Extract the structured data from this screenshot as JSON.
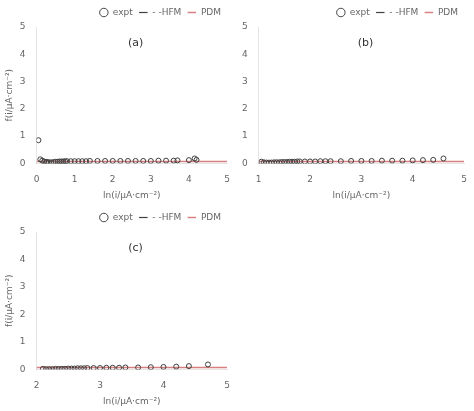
{
  "chart_data": [
    {
      "type": "scatter",
      "annotations": [
        "(a)"
      ],
      "xlabel": "ln(i/μA·cm⁻²)",
      "ylabel": "f(i/μA·cm⁻²)",
      "xlim": [
        0,
        5
      ],
      "ylim": [
        0,
        5
      ],
      "xticks": [
        0,
        1,
        2,
        3,
        4,
        5
      ],
      "yticks": [
        0,
        1,
        2,
        3,
        4,
        5
      ],
      "grid": false,
      "legend": "upper right",
      "series": [
        {
          "name": "expt",
          "type": "scatter",
          "color": "#404040",
          "marker": "circle",
          "x": [
            0.05,
            0.1,
            0.15,
            0.2,
            0.25,
            0.28,
            0.32,
            0.38,
            0.45,
            0.5,
            0.55,
            0.6,
            0.65,
            0.7,
            0.75,
            0.8,
            0.9,
            1.0,
            1.1,
            1.2,
            1.3,
            1.4,
            1.6,
            1.8,
            2.0,
            2.2,
            2.4,
            2.6,
            2.8,
            3.0,
            3.2,
            3.4,
            3.6,
            3.7,
            4.0,
            4.2,
            4.15
          ],
          "values": [
            0.85,
            0.15,
            0.1,
            0.07,
            0.05,
            0.05,
            0.04,
            0.04,
            0.05,
            0.06,
            0.06,
            0.07,
            0.07,
            0.07,
            0.08,
            0.08,
            0.08,
            0.08,
            0.08,
            0.08,
            0.08,
            0.09,
            0.09,
            0.09,
            0.09,
            0.09,
            0.09,
            0.09,
            0.09,
            0.09,
            0.1,
            0.1,
            0.1,
            0.11,
            0.12,
            0.13,
            0.18
          ]
        },
        {
          "name": "- -HFM",
          "type": "line",
          "color": "#404040",
          "line_style": "dashed",
          "x": [],
          "values": []
        },
        {
          "name": "PDM",
          "type": "hline",
          "color": "#d88080",
          "line_style": "solid",
          "values": [
            0.07
          ]
        }
      ]
    },
    {
      "type": "scatter",
      "annotations": [
        "(b)"
      ],
      "xlabel": "ln(i/μA·cm⁻²)",
      "xlim": [
        1,
        5
      ],
      "ylim": [
        0,
        5
      ],
      "xticks": [
        1,
        2,
        3,
        4,
        5
      ],
      "yticks": [
        0,
        1,
        2,
        3,
        4,
        5
      ],
      "grid": false,
      "legend": "upper right",
      "series": [
        {
          "name": "expt",
          "type": "scatter",
          "color": "#404040",
          "marker": "circle",
          "x": [
            1.05,
            1.1,
            1.15,
            1.2,
            1.25,
            1.3,
            1.35,
            1.4,
            1.45,
            1.5,
            1.55,
            1.6,
            1.65,
            1.7,
            1.75,
            1.8,
            1.9,
            2.0,
            2.1,
            2.2,
            2.3,
            2.4,
            2.6,
            2.8,
            3.0,
            3.2,
            3.4,
            3.6,
            3.8,
            4.0,
            4.2,
            4.4,
            4.6
          ],
          "values": [
            0.06,
            0.04,
            0.03,
            0.03,
            0.03,
            0.04,
            0.04,
            0.04,
            0.05,
            0.05,
            0.05,
            0.06,
            0.06,
            0.06,
            0.07,
            0.07,
            0.07,
            0.07,
            0.07,
            0.08,
            0.08,
            0.08,
            0.08,
            0.09,
            0.09,
            0.09,
            0.1,
            0.1,
            0.1,
            0.11,
            0.12,
            0.13,
            0.18
          ]
        },
        {
          "name": "- -HFM",
          "type": "line",
          "color": "#404040",
          "line_style": "dashed",
          "x": [],
          "values": []
        },
        {
          "name": "PDM",
          "type": "hline",
          "color": "#d88080",
          "line_style": "solid",
          "values": [
            0.07
          ]
        }
      ]
    },
    {
      "type": "scatter",
      "annotations": [
        "(c)"
      ],
      "xlabel": "ln(i/μA·cm⁻²)",
      "ylabel": "f(i/μA·cm⁻²)",
      "xlim": [
        2,
        5
      ],
      "ylim": [
        0,
        5
      ],
      "xticks": [
        2,
        3,
        4,
        5
      ],
      "yticks": [
        0,
        1,
        2,
        3,
        4,
        5
      ],
      "grid": false,
      "legend": "upper right",
      "series": [
        {
          "name": "expt",
          "type": "scatter",
          "color": "#404040",
          "marker": "circle",
          "x": [
            2.1,
            2.15,
            2.2,
            2.25,
            2.3,
            2.35,
            2.4,
            2.45,
            2.5,
            2.55,
            2.6,
            2.65,
            2.7,
            2.75,
            2.8,
            2.9,
            3.0,
            3.1,
            3.2,
            3.3,
            3.4,
            3.6,
            3.8,
            4.0,
            4.2,
            4.4,
            4.7
          ],
          "values": [
            0.02,
            0.01,
            0.01,
            0.01,
            0.02,
            0.02,
            0.02,
            0.02,
            0.03,
            0.03,
            0.03,
            0.04,
            0.04,
            0.04,
            0.05,
            0.05,
            0.05,
            0.06,
            0.06,
            0.06,
            0.07,
            0.07,
            0.08,
            0.09,
            0.1,
            0.12,
            0.18
          ]
        },
        {
          "name": "- -HFM",
          "type": "line",
          "color": "#404040",
          "line_style": "dashed",
          "x": [],
          "values": []
        },
        {
          "name": "PDM",
          "type": "hline",
          "color": "#d88080",
          "line_style": "solid",
          "values": [
            0.07
          ]
        }
      ]
    }
  ]
}
